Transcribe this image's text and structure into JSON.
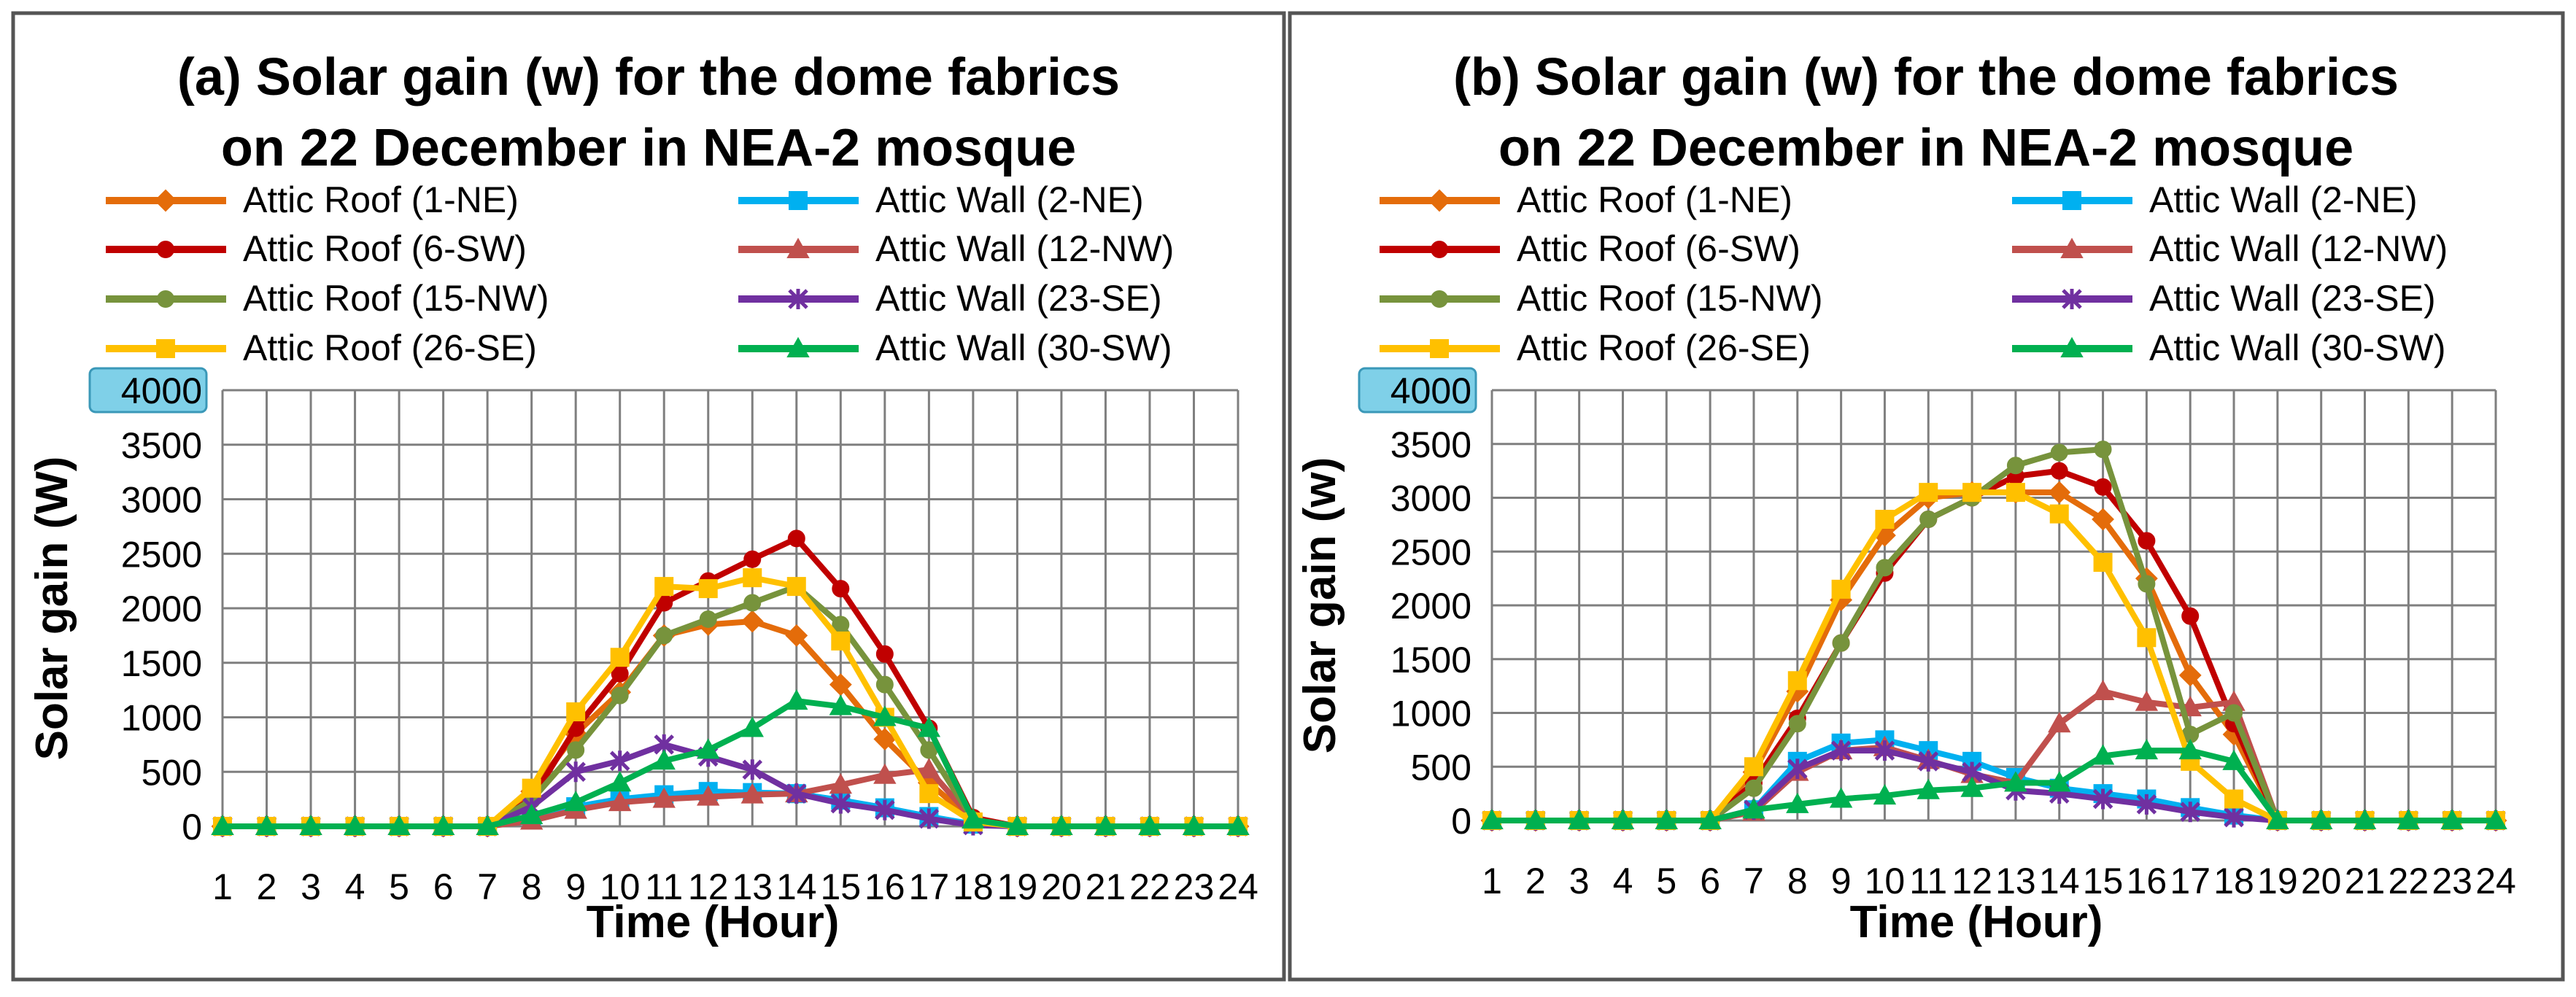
{
  "chart_data": [
    {
      "type": "line",
      "panel": "a",
      "title_lines": [
        "(a) Solar gain (w) for the dome fabrics",
        "on 22 December in NEA-2 mosque"
      ],
      "xlabel": "Time (Hour)",
      "ylabel": "Solar gain (W)",
      "ylim": [
        0,
        4000
      ],
      "ytick_labels": [
        "0",
        "500",
        "1000",
        "1500",
        "2000",
        "2500",
        "3000",
        "3500",
        "4000"
      ],
      "categories": [
        "1",
        "2",
        "3",
        "4",
        "5",
        "6",
        "7",
        "8",
        "9",
        "10",
        "11",
        "12",
        "13",
        "14",
        "15",
        "16",
        "17",
        "18",
        "19",
        "20",
        "21",
        "22",
        "23",
        "24"
      ],
      "grid": true,
      "legend_position": "top",
      "series": [
        {
          "name": "Attic Roof (1-NE)",
          "color": "#E46C0A",
          "marker": "diamond",
          "values": [
            0,
            0,
            0,
            0,
            0,
            0,
            0,
            320,
            850,
            1230,
            1750,
            1850,
            1880,
            1750,
            1300,
            800,
            400,
            50,
            0,
            0,
            0,
            0,
            0,
            0
          ]
        },
        {
          "name": "Attic Wall (2-NE)",
          "color": "#00B0F0",
          "marker": "square",
          "values": [
            0,
            0,
            0,
            0,
            0,
            0,
            0,
            60,
            180,
            250,
            290,
            320,
            310,
            300,
            240,
            170,
            90,
            20,
            0,
            0,
            0,
            0,
            0,
            0
          ]
        },
        {
          "name": "Attic Roof (6-SW)",
          "color": "#C00000",
          "marker": "circle",
          "values": [
            0,
            0,
            0,
            0,
            0,
            0,
            0,
            250,
            900,
            1400,
            2050,
            2250,
            2450,
            2640,
            2180,
            1580,
            900,
            80,
            0,
            0,
            0,
            0,
            0,
            0
          ]
        },
        {
          "name": "Attic Wall (12-NW)",
          "color": "#C0504D",
          "marker": "triangle",
          "values": [
            0,
            0,
            0,
            0,
            0,
            0,
            0,
            50,
            150,
            220,
            250,
            270,
            290,
            300,
            380,
            470,
            520,
            60,
            0,
            0,
            0,
            0,
            0,
            0
          ]
        },
        {
          "name": "Attic Roof (15-NW)",
          "color": "#77933C",
          "marker": "circle",
          "values": [
            0,
            0,
            0,
            0,
            0,
            0,
            0,
            240,
            700,
            1200,
            1750,
            1900,
            2050,
            2200,
            1850,
            1300,
            700,
            60,
            0,
            0,
            0,
            0,
            0,
            0
          ]
        },
        {
          "name": "Attic Wall (23-SE)",
          "color": "#7030A0",
          "marker": "star",
          "values": [
            0,
            0,
            0,
            0,
            0,
            0,
            0,
            180,
            500,
            600,
            750,
            640,
            520,
            300,
            210,
            150,
            70,
            10,
            0,
            0,
            0,
            0,
            0,
            0
          ]
        },
        {
          "name": "Attic Roof (26-SE)",
          "color": "#FFC000",
          "marker": "square",
          "values": [
            0,
            0,
            0,
            0,
            0,
            0,
            0,
            350,
            1050,
            1550,
            2200,
            2180,
            2280,
            2200,
            1700,
            1000,
            300,
            40,
            0,
            0,
            0,
            0,
            0,
            0
          ]
        },
        {
          "name": "Attic Wall (30-SW)",
          "color": "#00B050",
          "marker": "triangle",
          "values": [
            0,
            0,
            0,
            0,
            0,
            0,
            0,
            100,
            220,
            400,
            600,
            700,
            900,
            1150,
            1100,
            1000,
            900,
            60,
            0,
            0,
            0,
            0,
            0,
            0
          ]
        }
      ]
    },
    {
      "type": "line",
      "panel": "b",
      "title_lines": [
        "(b) Solar gain (w) for the dome fabrics",
        "on 22 December in NEA-2 mosque"
      ],
      "xlabel": "Time (Hour)",
      "ylabel": "Solar gain (w)",
      "ylim": [
        0,
        4000
      ],
      "ytick_labels": [
        "0",
        "500",
        "1000",
        "1500",
        "2000",
        "2500",
        "3000",
        "3500",
        "4000"
      ],
      "categories": [
        "1",
        "2",
        "3",
        "4",
        "5",
        "6",
        "7",
        "8",
        "9",
        "10",
        "11",
        "12",
        "13",
        "14",
        "15",
        "16",
        "17",
        "18",
        "19",
        "20",
        "21",
        "22",
        "23",
        "24"
      ],
      "grid": true,
      "legend_position": "top",
      "series": [
        {
          "name": "Attic Roof (1-NE)",
          "color": "#E46C0A",
          "marker": "diamond",
          "values": [
            0,
            0,
            0,
            0,
            0,
            0,
            450,
            1200,
            2050,
            2650,
            3000,
            3050,
            3050,
            3050,
            2800,
            2250,
            1350,
            800,
            0,
            0,
            0,
            0,
            0,
            0
          ]
        },
        {
          "name": "Attic Wall (2-NE)",
          "color": "#00B0F0",
          "marker": "square",
          "values": [
            0,
            0,
            0,
            0,
            0,
            0,
            100,
            550,
            720,
            750,
            650,
            550,
            400,
            300,
            250,
            200,
            120,
            50,
            0,
            0,
            0,
            0,
            0,
            0
          ]
        },
        {
          "name": "Attic Roof (6-SW)",
          "color": "#C00000",
          "marker": "circle",
          "values": [
            0,
            0,
            0,
            0,
            0,
            0,
            350,
            950,
            1650,
            2300,
            2800,
            3000,
            3200,
            3250,
            3100,
            2600,
            1900,
            900,
            0,
            0,
            0,
            0,
            0,
            0
          ]
        },
        {
          "name": "Attic Wall (12-NW)",
          "color": "#C0504D",
          "marker": "triangle",
          "values": [
            0,
            0,
            0,
            0,
            0,
            0,
            80,
            450,
            650,
            680,
            560,
            430,
            350,
            900,
            1200,
            1100,
            1050,
            1100,
            0,
            0,
            0,
            0,
            0,
            0
          ]
        },
        {
          "name": "Attic Roof (15-NW)",
          "color": "#77933C",
          "marker": "circle",
          "values": [
            0,
            0,
            0,
            0,
            0,
            0,
            300,
            900,
            1650,
            2350,
            2800,
            3000,
            3300,
            3420,
            3450,
            2200,
            800,
            1000,
            0,
            0,
            0,
            0,
            0,
            0
          ]
        },
        {
          "name": "Attic Wall (23-SE)",
          "color": "#7030A0",
          "marker": "star",
          "values": [
            0,
            0,
            0,
            0,
            0,
            0,
            100,
            480,
            650,
            650,
            550,
            450,
            280,
            250,
            200,
            150,
            80,
            30,
            0,
            0,
            0,
            0,
            0,
            0
          ]
        },
        {
          "name": "Attic Roof (26-SE)",
          "color": "#FFC000",
          "marker": "square",
          "values": [
            0,
            0,
            0,
            0,
            0,
            0,
            500,
            1300,
            2150,
            2800,
            3050,
            3050,
            3050,
            2850,
            2400,
            1700,
            550,
            200,
            0,
            0,
            0,
            0,
            0,
            0
          ]
        },
        {
          "name": "Attic Wall (30-SW)",
          "color": "#00B050",
          "marker": "triangle",
          "values": [
            0,
            0,
            0,
            0,
            0,
            0,
            100,
            150,
            200,
            230,
            280,
            300,
            350,
            350,
            600,
            650,
            650,
            550,
            0,
            0,
            0,
            0,
            0,
            0
          ]
        }
      ]
    }
  ]
}
